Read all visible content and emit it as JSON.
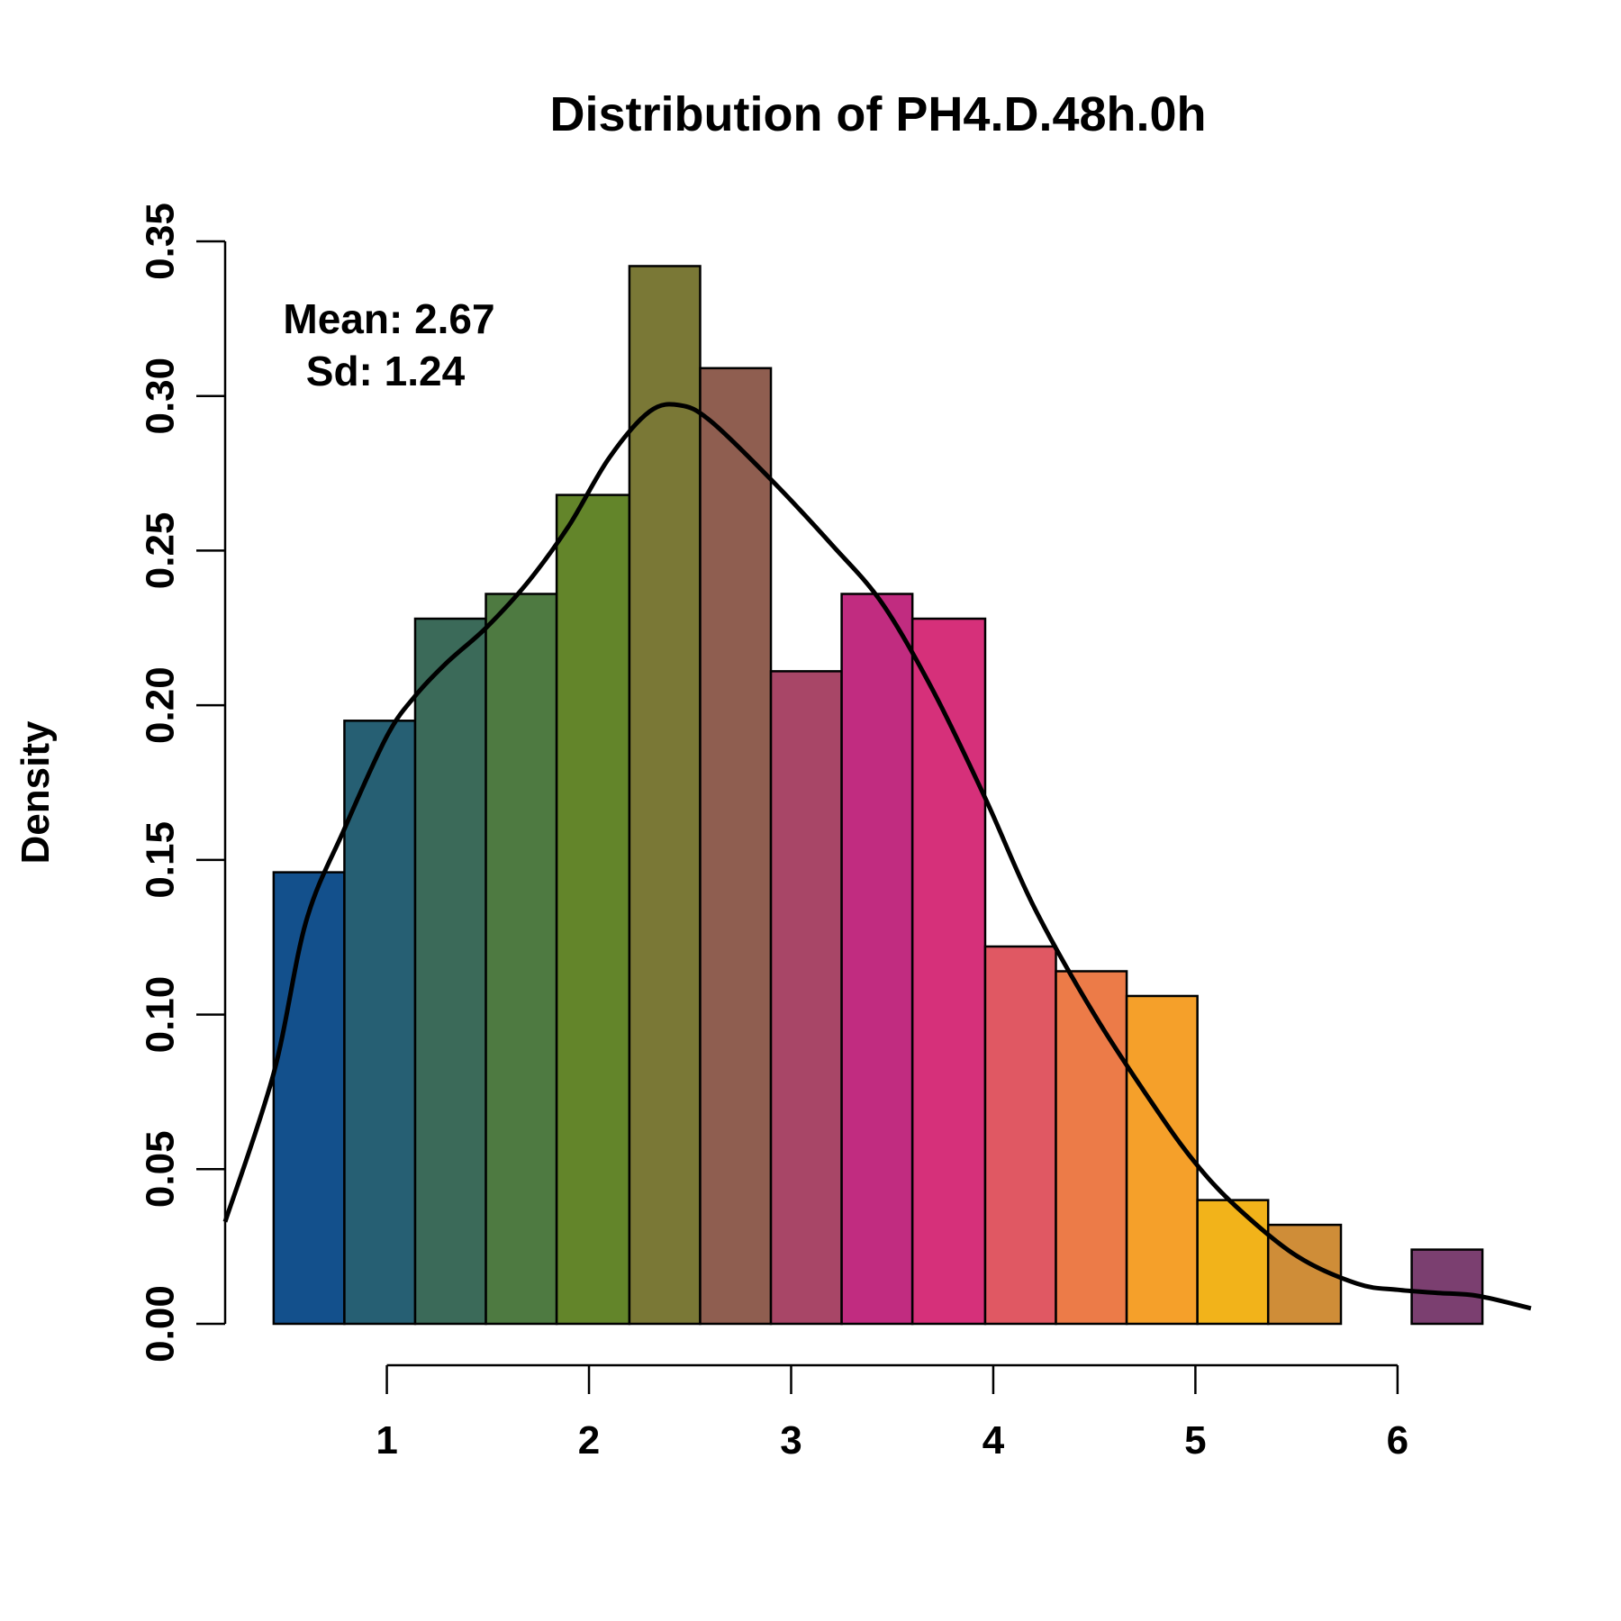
{
  "chart_data": {
    "type": "bar",
    "title": "Distribution of PH4.D.48h.0h",
    "xlabel": "",
    "ylabel": "Density",
    "annotations": {
      "mean": "Mean: 2.67",
      "sd": "Sd: 1.24"
    },
    "xlim": [
      0.2,
      6.66
    ],
    "ylim": [
      0,
      0.35
    ],
    "x_ticks": [
      1,
      2,
      3,
      4,
      5,
      6
    ],
    "y_ticks": [
      "0.00",
      "0.05",
      "0.10",
      "0.15",
      "0.20",
      "0.25",
      "0.30",
      "0.35"
    ],
    "bins": [
      {
        "x0": 0.44,
        "x1": 0.79,
        "density": 0.146,
        "color": "#13508c"
      },
      {
        "x0": 0.79,
        "x1": 1.14,
        "density": 0.195,
        "color": "#265f73"
      },
      {
        "x0": 1.14,
        "x1": 1.49,
        "density": 0.228,
        "color": "#3b6a59"
      },
      {
        "x0": 1.49,
        "x1": 1.84,
        "density": 0.236,
        "color": "#4e7a41"
      },
      {
        "x0": 1.84,
        "x1": 2.2,
        "density": 0.268,
        "color": "#63852a"
      },
      {
        "x0": 2.2,
        "x1": 2.55,
        "density": 0.342,
        "color": "#7a7836"
      },
      {
        "x0": 2.55,
        "x1": 2.9,
        "density": 0.309,
        "color": "#8f5e50"
      },
      {
        "x0": 2.9,
        "x1": 3.25,
        "density": 0.211,
        "color": "#a84667"
      },
      {
        "x0": 3.25,
        "x1": 3.6,
        "density": 0.236,
        "color": "#c12c80"
      },
      {
        "x0": 3.6,
        "x1": 3.96,
        "density": 0.228,
        "color": "#d6307a"
      },
      {
        "x0": 3.96,
        "x1": 4.31,
        "density": 0.122,
        "color": "#e05863"
      },
      {
        "x0": 4.31,
        "x1": 4.66,
        "density": 0.114,
        "color": "#ec7b48"
      },
      {
        "x0": 4.66,
        "x1": 5.01,
        "density": 0.106,
        "color": "#f5a02a"
      },
      {
        "x0": 5.01,
        "x1": 5.36,
        "density": 0.04,
        "color": "#f2b31a"
      },
      {
        "x0": 5.36,
        "x1": 5.72,
        "density": 0.032,
        "color": "#cf8d38"
      },
      {
        "x0": 5.72,
        "x1": 6.07,
        "density": 0,
        "color": "#ffffff"
      },
      {
        "x0": 6.07,
        "x1": 6.42,
        "density": 0.024,
        "color": "#7b3f70"
      }
    ],
    "density_curve": {
      "x": [
        0.2,
        0.44,
        0.6,
        0.79,
        1.0,
        1.14,
        1.3,
        1.49,
        1.7,
        1.9,
        2.1,
        2.3,
        2.45,
        2.6,
        2.9,
        3.2,
        3.45,
        3.7,
        3.96,
        4.2,
        4.5,
        4.8,
        5.0,
        5.2,
        5.5,
        5.8,
        6.0,
        6.2,
        6.4,
        6.66
      ],
      "y": [
        0.033,
        0.081,
        0.13,
        0.16,
        0.19,
        0.203,
        0.214,
        0.225,
        0.24,
        0.258,
        0.28,
        0.295,
        0.297,
        0.292,
        0.273,
        0.252,
        0.233,
        0.205,
        0.17,
        0.135,
        0.1,
        0.07,
        0.052,
        0.038,
        0.022,
        0.013,
        0.011,
        0.01,
        0.009,
        0.005
      ]
    }
  }
}
